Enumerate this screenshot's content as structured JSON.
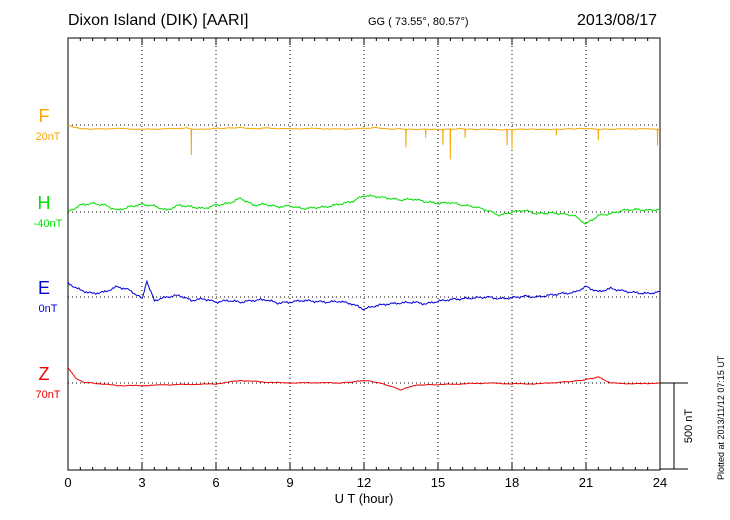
{
  "header": {
    "station": "Dixon Island (DIK)  [AARI]",
    "coords": "GG ( 73.55°,  80.57°)",
    "date": "2013/08/17"
  },
  "footer": {
    "plotted": "Plotted at 2013/11/12 07:15 UT"
  },
  "chart_data": {
    "type": "line",
    "title": "Dixon Island (DIK)  [AARI]",
    "xlabel": "U T (hour)",
    "xlim": [
      0,
      24
    ],
    "xticks": [
      "0",
      "3",
      "6",
      "9",
      "12",
      "15",
      "18",
      "21",
      "24"
    ],
    "grid": true,
    "scale_bar": "500 nT",
    "series": [
      {
        "name": "F",
        "baseline_label": "20nT",
        "color": "#f5a800",
        "x": [
          0,
          0.3,
          0.6,
          1,
          2,
          3,
          4,
          4.8,
          5.2,
          6,
          6.5,
          7,
          7.5,
          8,
          9,
          10,
          11,
          12,
          12.5,
          13,
          13.5,
          14,
          14.5,
          15,
          15.5,
          16,
          16.5,
          17,
          17.5,
          18,
          18.5,
          19,
          19.5,
          20,
          20.5,
          21,
          21.5,
          22,
          23,
          24
        ],
        "y": [
          0,
          -15,
          -22,
          -24,
          -20,
          -25,
          -22,
          -18,
          -26,
          -20,
          -18,
          -15,
          -22,
          -18,
          -22,
          -20,
          -24,
          -20,
          -15,
          -24,
          -22,
          -26,
          -24,
          -26,
          -24,
          -22,
          -26,
          -24,
          -28,
          -26,
          -24,
          -25,
          -26,
          -24,
          -22,
          -20,
          -25,
          -24,
          -22,
          -24
        ],
        "spikes": [
          {
            "x": 5.0,
            "y": -175
          },
          {
            "x": 13.7,
            "y": -130
          },
          {
            "x": 14.5,
            "y": -75
          },
          {
            "x": 15.2,
            "y": -115
          },
          {
            "x": 15.5,
            "y": -200
          },
          {
            "x": 16.1,
            "y": -75
          },
          {
            "x": 17.8,
            "y": -120
          },
          {
            "x": 18.0,
            "y": -140
          },
          {
            "x": 19.8,
            "y": -60
          },
          {
            "x": 21.5,
            "y": -90
          },
          {
            "x": 23.9,
            "y": -120
          }
        ]
      },
      {
        "name": "H",
        "baseline_label": "-40nT",
        "color": "#00e000",
        "x": [
          0,
          0.5,
          1,
          1.5,
          2,
          2.5,
          3,
          3.5,
          4,
          4.5,
          5,
          5.5,
          6,
          6.5,
          7,
          7.5,
          8,
          8.5,
          9,
          9.5,
          10,
          10.5,
          11,
          11.5,
          12,
          12.5,
          13,
          13.5,
          14,
          14.5,
          15,
          15.5,
          16,
          16.5,
          17,
          17.5,
          18,
          18.5,
          19,
          19.5,
          20,
          20.5,
          21,
          21.5,
          22,
          22.5,
          23,
          23.5,
          24
        ],
        "y": [
          0,
          40,
          50,
          40,
          10,
          30,
          45,
          35,
          10,
          40,
          30,
          20,
          40,
          50,
          80,
          40,
          45,
          30,
          35,
          20,
          25,
          30,
          45,
          60,
          95,
          90,
          80,
          70,
          75,
          60,
          50,
          55,
          40,
          30,
          10,
          -20,
          0,
          10,
          -10,
          -5,
          -10,
          -20,
          -70,
          -20,
          -10,
          10,
          15,
          10,
          15
        ]
      },
      {
        "name": "E",
        "baseline_label": "0nT",
        "color": "#0000dd",
        "x": [
          0,
          0.5,
          1,
          1.5,
          2,
          2.5,
          3,
          3.2,
          3.5,
          4,
          4.5,
          5,
          5.5,
          6,
          6.5,
          7,
          7.5,
          8,
          8.5,
          9,
          9.5,
          10,
          10.5,
          11,
          11.5,
          12,
          12.5,
          13,
          13.5,
          14,
          14.5,
          15,
          15.5,
          16,
          16.5,
          17,
          17.5,
          18,
          18.5,
          19,
          19.5,
          20,
          20.5,
          21,
          21.5,
          22,
          22.5,
          23,
          23.5,
          24
        ],
        "y": [
          80,
          40,
          20,
          30,
          60,
          40,
          -10,
          90,
          -20,
          0,
          10,
          -20,
          -10,
          -30,
          -20,
          -30,
          -20,
          -15,
          -35,
          -30,
          -20,
          -25,
          -30,
          -25,
          -40,
          -70,
          -50,
          -40,
          -35,
          -30,
          -40,
          -25,
          -15,
          -10,
          -5,
          0,
          -10,
          -5,
          5,
          0,
          10,
          20,
          25,
          60,
          30,
          50,
          35,
          25,
          20,
          30
        ]
      },
      {
        "name": "Z",
        "baseline_label": "70nT",
        "color": "#ee0000",
        "x": [
          0,
          0.3,
          0.6,
          1,
          2,
          3,
          4,
          5,
          6,
          7,
          8,
          9,
          10,
          11,
          11.5,
          12,
          12.5,
          13,
          13.5,
          14,
          14.5,
          15,
          16,
          17,
          18,
          19,
          20,
          20.5,
          21,
          21.5,
          22,
          23,
          24
        ],
        "y": [
          90,
          30,
          5,
          0,
          -15,
          -15,
          -10,
          -8,
          -5,
          15,
          5,
          0,
          2,
          0,
          5,
          15,
          5,
          -15,
          -40,
          -15,
          -10,
          -10,
          -5,
          0,
          -5,
          -5,
          5,
          10,
          20,
          35,
          0,
          -5,
          0
        ]
      }
    ]
  }
}
